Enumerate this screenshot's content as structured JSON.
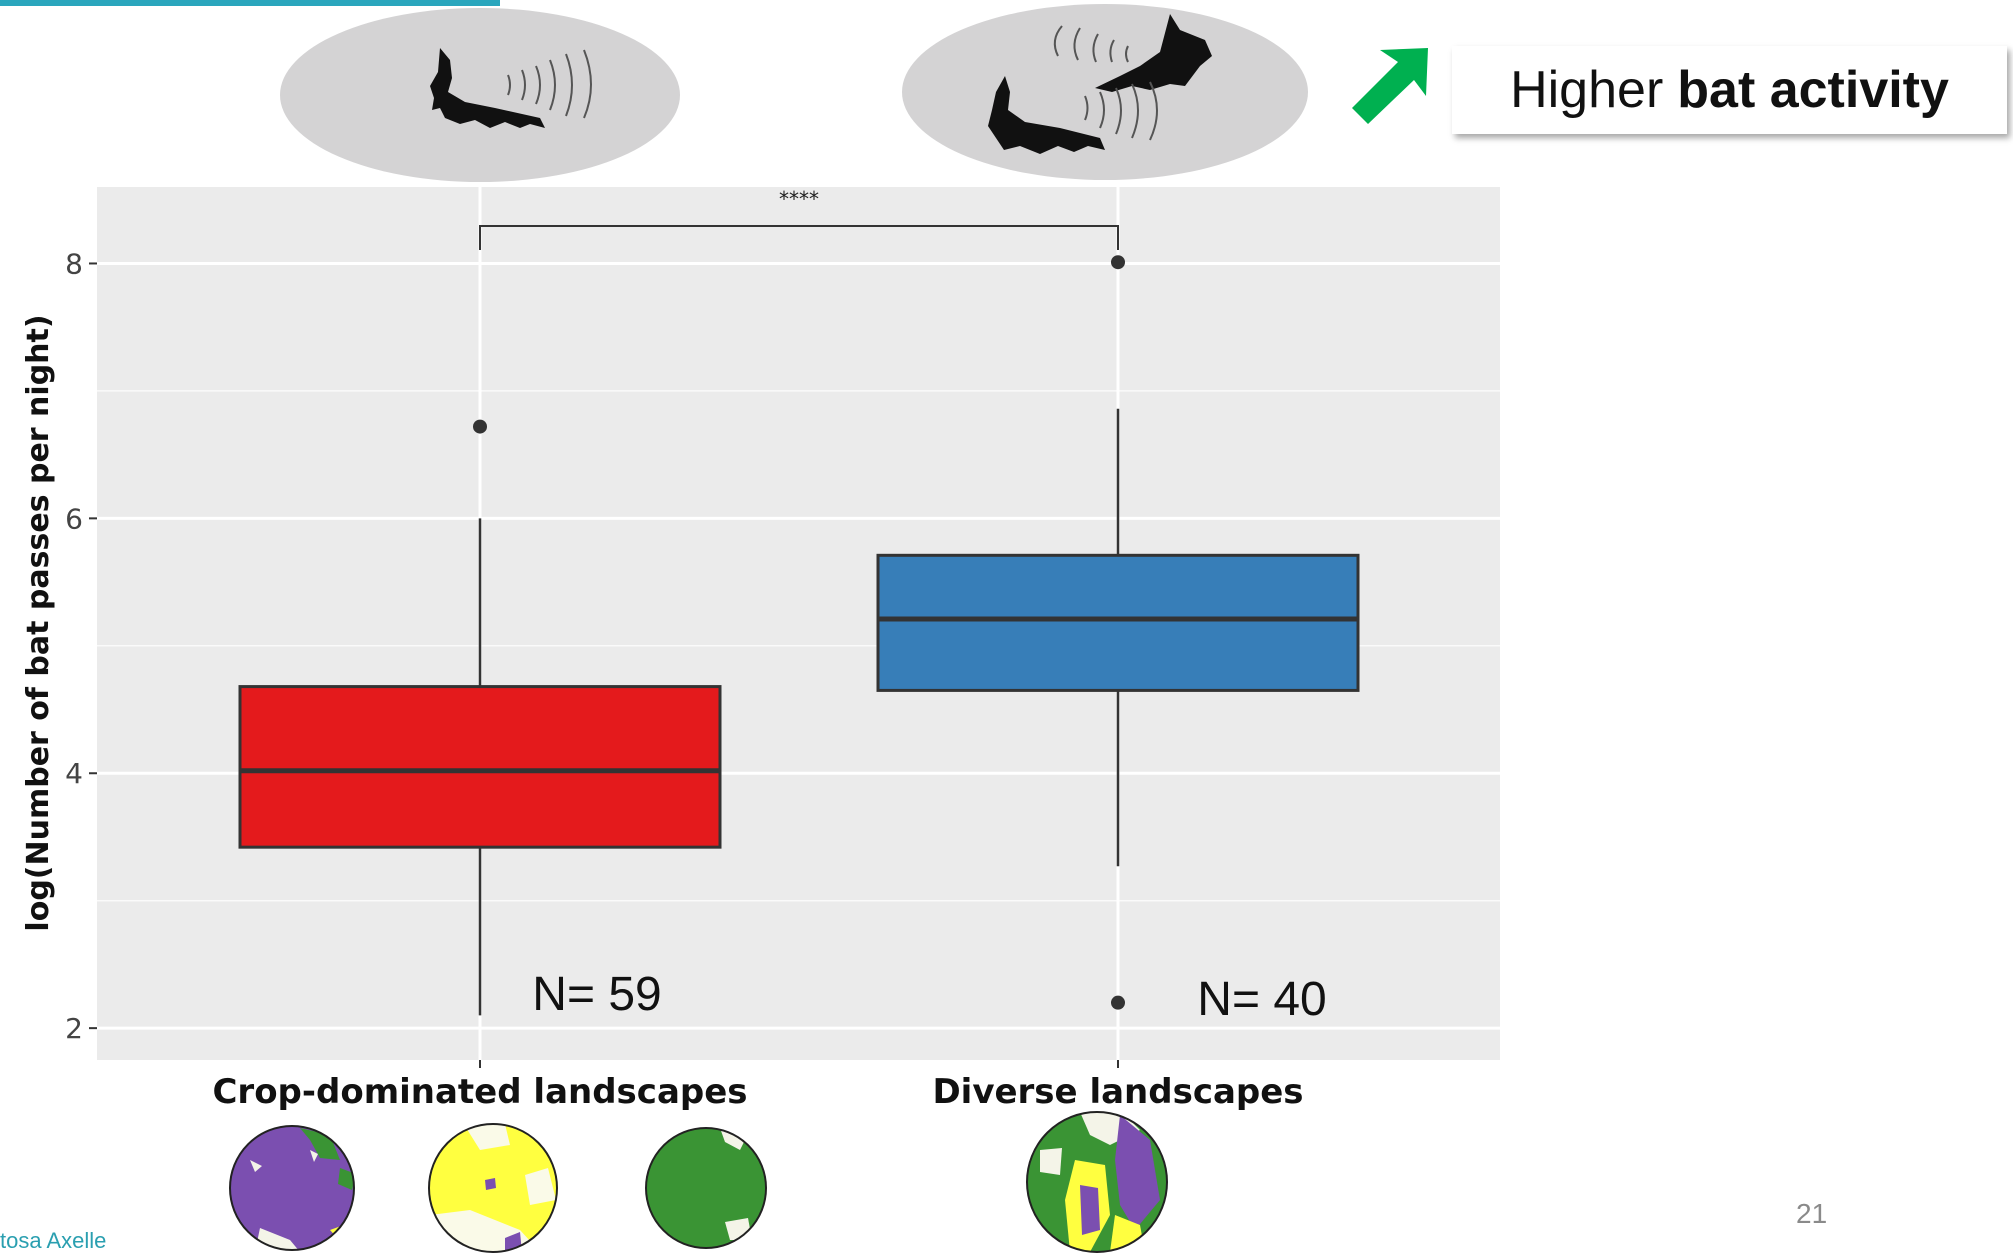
{
  "callout": {
    "prefix": "Higher",
    "bold": "bat activity"
  },
  "page_number": "21",
  "author": "tosa Axelle",
  "colors": {
    "crop": "#e41a1c",
    "diverse": "#377eb8",
    "arrow": "#00b050",
    "panel": "#ebebeb",
    "ellipse": "#d4d3d4",
    "map_purple": "#7b4fb0",
    "map_yellow": "#ffff40",
    "map_green": "#3a9434"
  },
  "icons": [
    "bat-silhouette-icon",
    "sound-wave-icon",
    "up-right-arrow-icon",
    "landscape-map-icon"
  ],
  "chart_data": {
    "type": "box",
    "title": "",
    "xlabel": "",
    "ylabel": "log(Number of bat passes per night)",
    "ylim": [
      1.75,
      8.6
    ],
    "yticks": [
      "2",
      "4",
      "6",
      "8"
    ],
    "grid": true,
    "categories": [
      "Crop-dominated landscapes",
      "Diverse landscapes"
    ],
    "series": [
      {
        "category": "Crop-dominated landscapes",
        "whisker_low": 2.1,
        "q1": 3.42,
        "median": 4.02,
        "q3": 4.68,
        "whisker_high": 6.0,
        "outliers": [
          6.72
        ],
        "n_label": "N= 59",
        "color": "#e41a1c"
      },
      {
        "category": "Diverse landscapes",
        "whisker_low": 3.27,
        "q1": 4.65,
        "median": 5.21,
        "q3": 5.71,
        "whisker_high": 6.86,
        "outliers": [
          8.01,
          2.2
        ],
        "n_label": "N= 40",
        "color": "#377eb8"
      }
    ],
    "significance": "****"
  }
}
